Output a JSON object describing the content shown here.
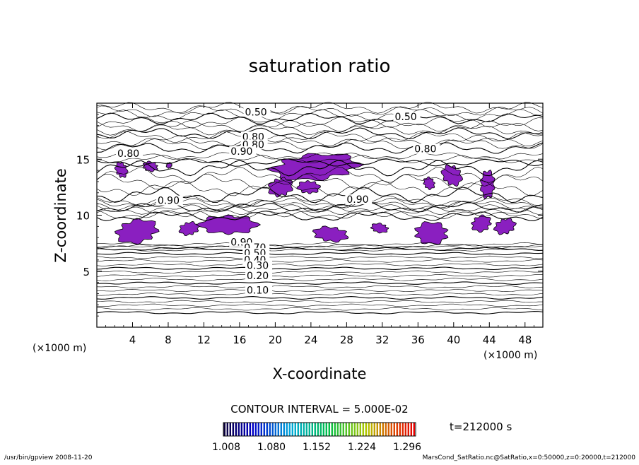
{
  "chart_data": {
    "type": "heatmap",
    "title": "saturation ratio",
    "xlabel": "X-coordinate",
    "ylabel": "Z-coordinate",
    "x_unit": "(×1000 m)",
    "z_unit": "(×1000 m)",
    "xlim": [
      0,
      50
    ],
    "ylim": [
      0,
      20
    ],
    "x_ticks": [
      4,
      8,
      12,
      16,
      20,
      24,
      28,
      32,
      36,
      40,
      44,
      48
    ],
    "y_ticks": [
      5,
      10,
      15
    ],
    "contour_interval_text": "CONTOUR INTERVAL = 5.000E-02",
    "time_text": "t=212000 s",
    "colorbar": {
      "range": [
        1.008,
        1.296
      ],
      "tick_labels": [
        "1.008",
        "1.080",
        "1.152",
        "1.224",
        "1.296"
      ]
    },
    "contour_labels": [
      {
        "text": "0.50",
        "x": 16.6,
        "z": 18.9
      },
      {
        "text": "0.50",
        "x": 33.4,
        "z": 18.5
      },
      {
        "text": "0.80",
        "x": 16.3,
        "z": 16.7
      },
      {
        "text": "0.80",
        "x": 16.3,
        "z": 16.0
      },
      {
        "text": "0.90",
        "x": 15.0,
        "z": 15.4
      },
      {
        "text": "0.80",
        "x": 2.3,
        "z": 15.2
      },
      {
        "text": "0.80",
        "x": 35.6,
        "z": 15.6
      },
      {
        "text": "0.90",
        "x": 28.0,
        "z": 11.1
      },
      {
        "text": "0.90",
        "x": 6.8,
        "z": 11.0
      },
      {
        "text": "0.90",
        "x": 15.0,
        "z": 7.3
      },
      {
        "text": "0.70",
        "x": 16.5,
        "z": 6.8
      },
      {
        "text": "0.50",
        "x": 16.5,
        "z": 6.3
      },
      {
        "text": "0.40",
        "x": 16.5,
        "z": 5.7
      },
      {
        "text": "0.30",
        "x": 16.8,
        "z": 5.2
      },
      {
        "text": "0.20",
        "x": 16.8,
        "z": 4.3
      },
      {
        "text": "0.10",
        "x": 16.8,
        "z": 3.0
      }
    ],
    "supersaturated_regions": [
      {
        "x": [
          2.0,
          3.5
        ],
        "z": [
          13.3,
          14.8
        ]
      },
      {
        "x": [
          5.0,
          7.0
        ],
        "z": [
          13.9,
          14.8
        ]
      },
      {
        "x": [
          7.7,
          8.5
        ],
        "z": [
          14.2,
          14.7
        ]
      },
      {
        "x": [
          19.0,
          30.0
        ],
        "z": [
          13.0,
          15.6
        ]
      },
      {
        "x": [
          19.2,
          22.0
        ],
        "z": [
          11.5,
          13.5
        ]
      },
      {
        "x": [
          22.5,
          25.0
        ],
        "z": [
          11.8,
          13.2
        ]
      },
      {
        "x": [
          38.6,
          41.0
        ],
        "z": [
          12.5,
          14.6
        ]
      },
      {
        "x": [
          36.5,
          38.0
        ],
        "z": [
          12.3,
          13.4
        ]
      },
      {
        "x": [
          42.8,
          44.8
        ],
        "z": [
          11.5,
          14.0
        ]
      },
      {
        "x": [
          1.8,
          7.2
        ],
        "z": [
          7.4,
          9.7
        ]
      },
      {
        "x": [
          9.2,
          11.5
        ],
        "z": [
          8.1,
          9.5
        ]
      },
      {
        "x": [
          11.5,
          18.0
        ],
        "z": [
          8.1,
          10.2
        ]
      },
      {
        "x": [
          24.2,
          28.2
        ],
        "z": [
          7.5,
          9.1
        ]
      },
      {
        "x": [
          30.6,
          32.8
        ],
        "z": [
          8.4,
          9.3
        ]
      },
      {
        "x": [
          35.2,
          39.8
        ],
        "z": [
          7.4,
          9.4
        ]
      },
      {
        "x": [
          41.8,
          44.4
        ],
        "z": [
          8.5,
          10.0
        ]
      },
      {
        "x": [
          44.5,
          47.0
        ],
        "z": [
          8.2,
          9.8
        ]
      }
    ],
    "colors": {
      "fill": "#8a1fc0",
      "line": "#000000",
      "background": "#ffffff"
    }
  },
  "footer": {
    "left_text": "/usr/bin/gpview   2008-11-20",
    "right_text": "MarsCond_SatRatio.nc@SatRatio,x=0:50000,z=0:20000,t=212000"
  }
}
